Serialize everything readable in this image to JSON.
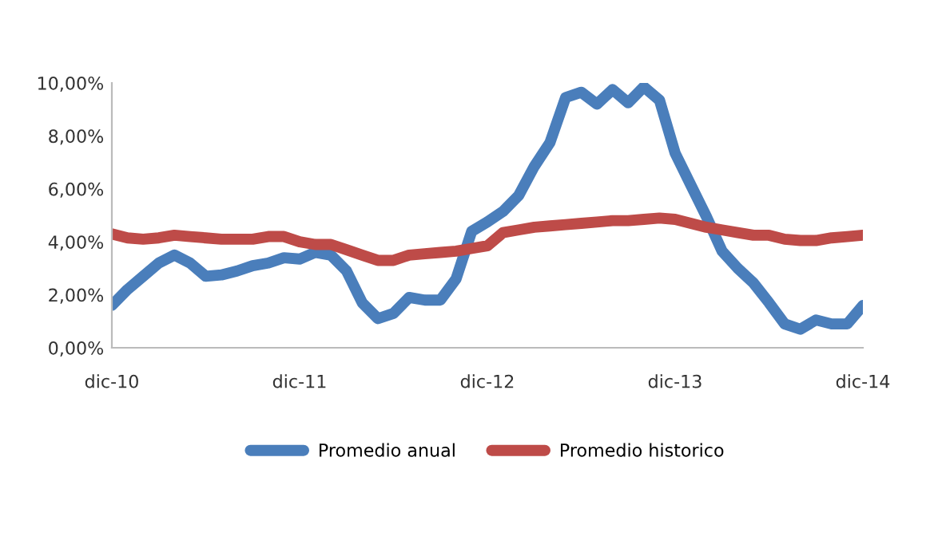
{
  "chart_data": {
    "type": "line",
    "categories": [
      "dic-10",
      null,
      null,
      null,
      null,
      null,
      null,
      null,
      null,
      null,
      null,
      null,
      "dic-11",
      null,
      null,
      null,
      null,
      null,
      null,
      null,
      null,
      null,
      null,
      null,
      "dic-12",
      null,
      null,
      null,
      null,
      null,
      null,
      null,
      null,
      null,
      null,
      null,
      "dic-13",
      null,
      null,
      null,
      null,
      null,
      null,
      null,
      null,
      null,
      null,
      null,
      "dic-14"
    ],
    "series": [
      {
        "name": "Promedio anual",
        "color": "#4a7ebb",
        "values": [
          1.6,
          2.2,
          2.7,
          3.2,
          3.5,
          3.2,
          2.7,
          2.75,
          2.9,
          3.1,
          3.2,
          3.4,
          3.35,
          3.6,
          3.5,
          2.9,
          1.7,
          1.1,
          1.3,
          1.9,
          1.8,
          1.8,
          2.6,
          4.4,
          4.75,
          5.15,
          5.75,
          6.85,
          7.75,
          9.45,
          9.65,
          9.2,
          9.75,
          9.25,
          9.85,
          9.35,
          7.35,
          6.15,
          4.95,
          3.65,
          3.0,
          2.45,
          1.7,
          0.9,
          0.7,
          1.05,
          0.9,
          0.9,
          1.6
        ]
      },
      {
        "name": "Promedio historico",
        "color": "#be4b48",
        "values": [
          4.3,
          4.15,
          4.1,
          4.15,
          4.25,
          4.2,
          4.15,
          4.1,
          4.1,
          4.1,
          4.2,
          4.2,
          4.0,
          3.9,
          3.9,
          3.7,
          3.5,
          3.3,
          3.3,
          3.5,
          3.55,
          3.6,
          3.65,
          3.75,
          3.85,
          4.35,
          4.45,
          4.55,
          4.6,
          4.65,
          4.7,
          4.75,
          4.8,
          4.8,
          4.85,
          4.9,
          4.85,
          4.7,
          4.55,
          4.45,
          4.35,
          4.25,
          4.25,
          4.1,
          4.05,
          4.05,
          4.15,
          4.2,
          4.25
        ]
      }
    ],
    "ylim": [
      0,
      10
    ],
    "yticks": [
      {
        "value": 0,
        "label": "0,00%"
      },
      {
        "value": 2,
        "label": "2,00%"
      },
      {
        "value": 4,
        "label": "4,00%"
      },
      {
        "value": 6,
        "label": "6,00%"
      },
      {
        "value": 8,
        "label": "8,00%"
      },
      {
        "value": 10,
        "label": "10,00%"
      }
    ],
    "grid": false,
    "legend": "bottom",
    "marker": "none",
    "line_style": "solid"
  }
}
